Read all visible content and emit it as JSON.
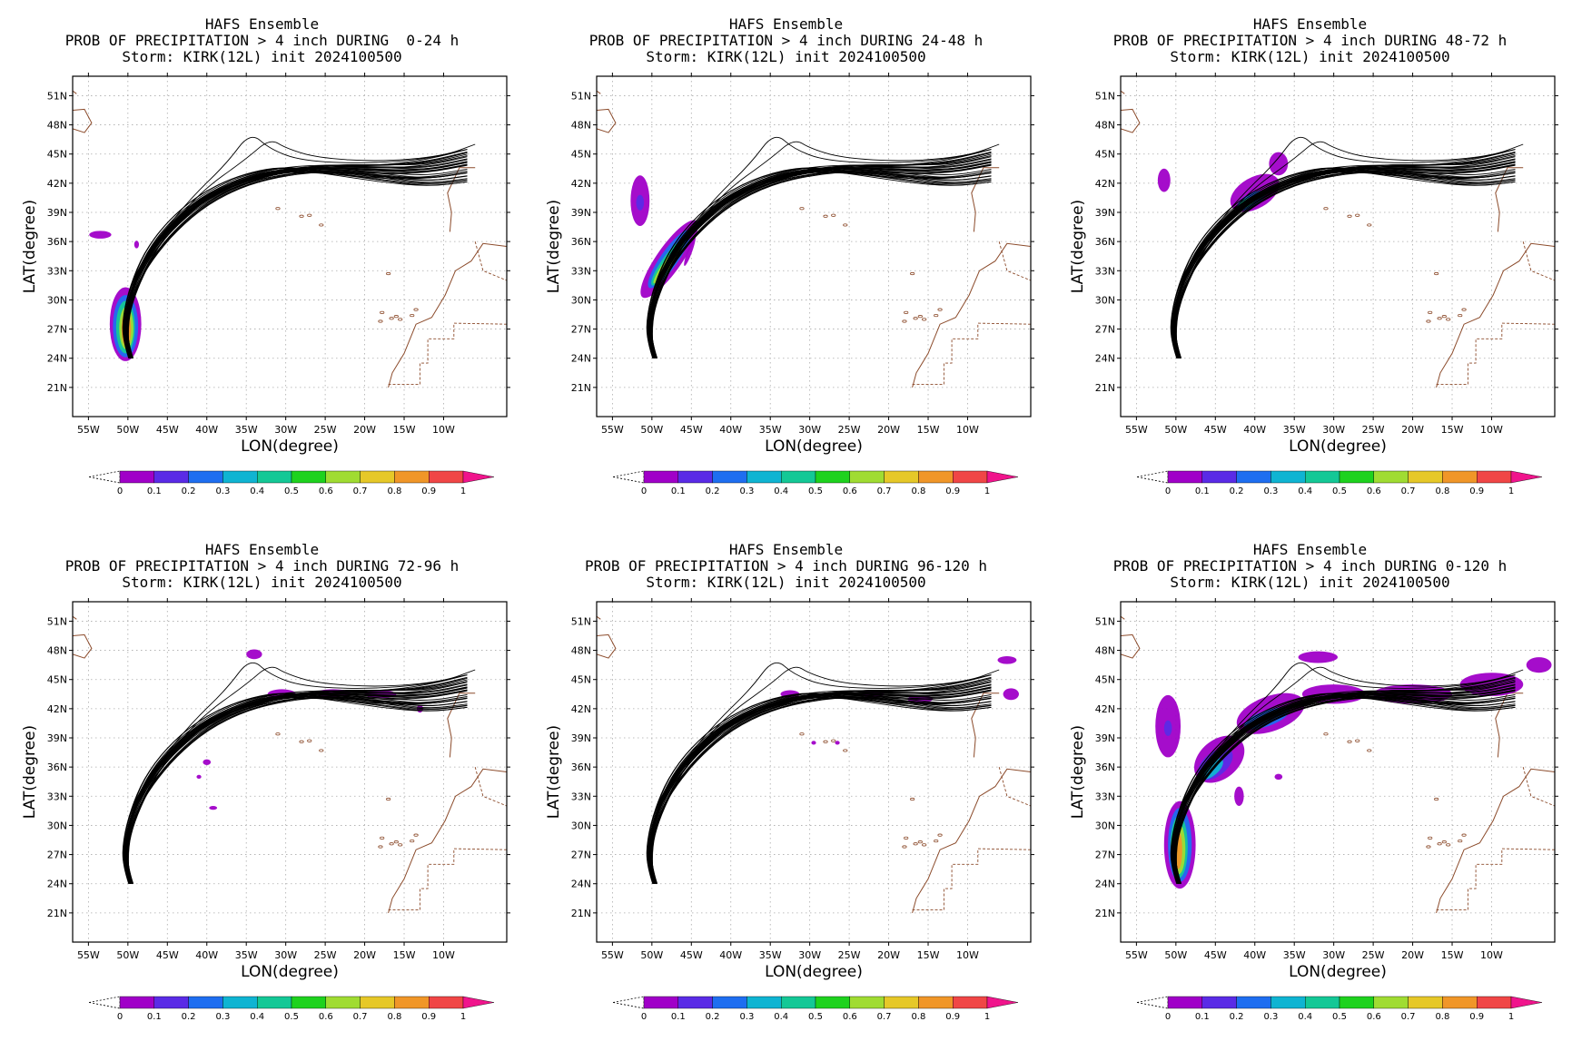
{
  "common": {
    "title_line1": "HAFS Ensemble",
    "title_line3": "Storm: KIRK(12L) init 2024100500",
    "xlabel": "LON(degree)",
    "ylabel": "LAT(degree)",
    "lat_ticks": [
      "51N",
      "48N",
      "45N",
      "42N",
      "39N",
      "36N",
      "33N",
      "30N",
      "27N",
      "24N",
      "21N"
    ],
    "lon_ticks": [
      "55W",
      "50W",
      "45W",
      "40W",
      "35W",
      "30W",
      "25W",
      "20W",
      "15W",
      "10W"
    ],
    "colorbar_labels": [
      "0",
      "0.1",
      "0.2",
      "0.3",
      "0.4",
      "0.5",
      "0.6",
      "0.7",
      "0.8",
      "0.9",
      "1"
    ],
    "colorbar_colors": [
      "#a000c8",
      "#5a2be6",
      "#1e6ef0",
      "#0fb4d2",
      "#14c896",
      "#1ed21e",
      "#a0dc32",
      "#e6c828",
      "#f09628",
      "#f04646",
      "#f0148c"
    ],
    "track_color": "#000000",
    "coast_color": "#8b4a2a"
  },
  "panels": [
    {
      "title_line2": "PROB OF PRECIPITATION > 4 inch DURING  0-24 h"
    },
    {
      "title_line2": "PROB OF PRECIPITATION > 4 inch DURING 24-48 h"
    },
    {
      "title_line2": "PROB OF PRECIPITATION > 4 inch DURING 48-72 h"
    },
    {
      "title_line2": "PROB OF PRECIPITATION > 4 inch DURING 72-96 h"
    },
    {
      "title_line2": "PROB OF PRECIPITATION > 4 inch DURING 96-120 h"
    },
    {
      "title_line2": "PROB OF PRECIPITATION > 4 inch DURING 0-120 h"
    }
  ]
}
